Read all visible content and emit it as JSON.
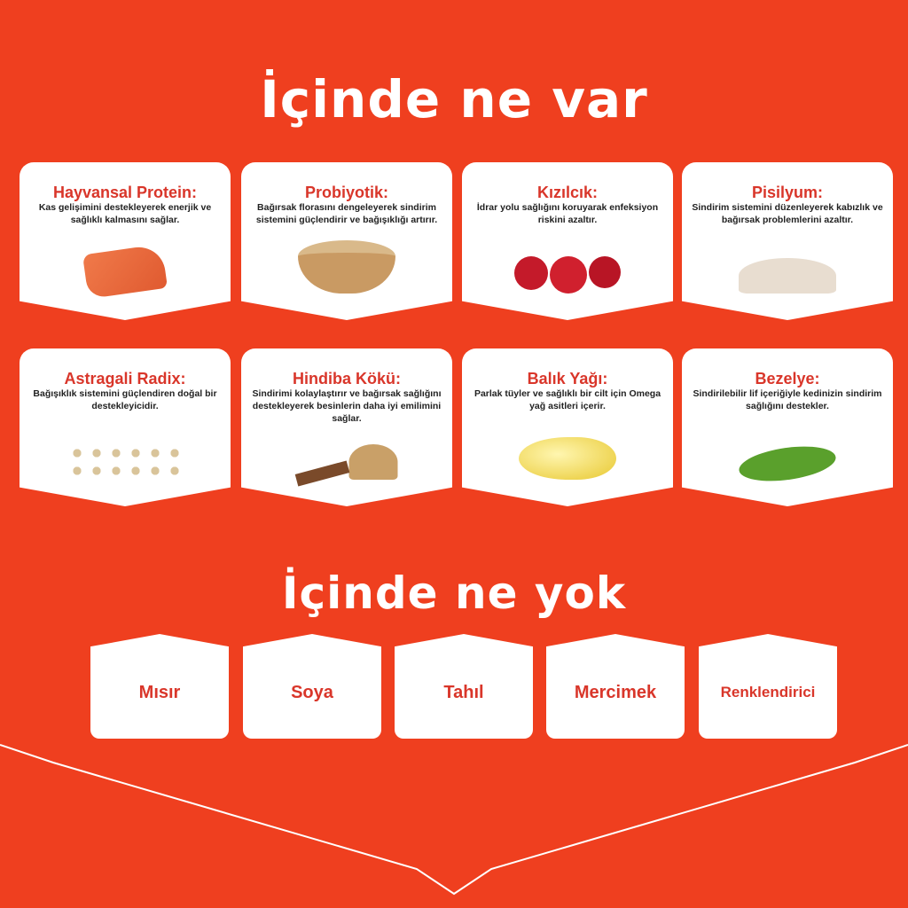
{
  "sections": {
    "has_title": "İçinde ne var",
    "hasnt_title": "İçinde ne yok"
  },
  "ingredients": [
    {
      "name": "Hayvansal Protein:",
      "desc": "Kas gelişimini destekleyerek enerjik ve sağlıklı kalmasını sağlar.",
      "icon": "salmon-icon"
    },
    {
      "name": "Probiyotik:",
      "desc": "Bağırsak florasını dengeleyerek sindirim sistemini güçlendirir ve bağışıklığı artırır.",
      "icon": "powder-bowl-icon"
    },
    {
      "name": "Kızılcık:",
      "desc": "İdrar yolu sağlığını koruyarak enfeksiyon riskini azaltır.",
      "icon": "cranberry-icon"
    },
    {
      "name": "Pisilyum:",
      "desc": "Sindirim sistemini düzenleyerek kabızlık ve bağırsak problemlerini azaltır.",
      "icon": "psyllium-icon"
    },
    {
      "name": "Astragali Radix:",
      "desc": "Bağışıklık sistemini güçlendiren doğal bir destekleyicidir.",
      "icon": "root-slices-icon"
    },
    {
      "name": "Hindiba Kökü:",
      "desc": "Sindirimi kolaylaştırır ve bağırsak sağlığını destekleyerek besinlerin daha iyi emilimini sağlar.",
      "icon": "chicory-root-icon"
    },
    {
      "name": "Balık Yağı:",
      "desc": "Parlak tüyler ve sağlıklı bir cilt için Omega yağ asitleri içerir.",
      "icon": "fish-oil-capsule-icon"
    },
    {
      "name": "Bezelye:",
      "desc": "Sindirilebilir lif içeriğiyle kedinizin sindirim sağlığını destekler.",
      "icon": "peas-icon"
    }
  ],
  "excluded": [
    "Mısır",
    "Soya",
    "Tahıl",
    "Mercimek",
    "Renklendirici"
  ],
  "colors": {
    "background": "#ef3f1f",
    "accent": "#d9362a"
  }
}
